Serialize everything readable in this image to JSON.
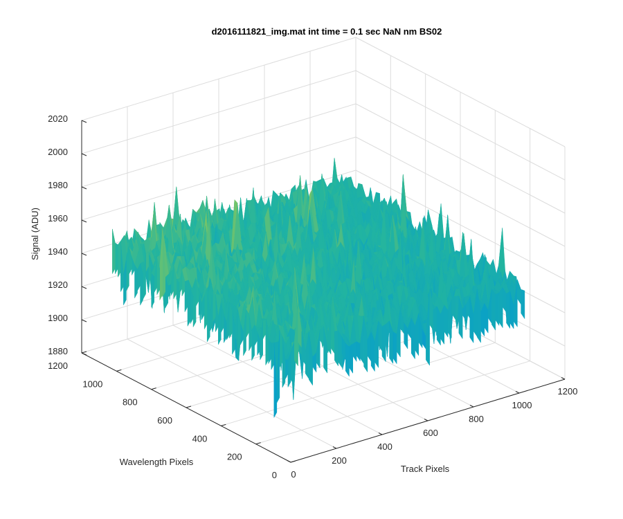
{
  "chart_data": {
    "type": "surface",
    "title": "d2016111821_img.mat int time = 0.1 sec  NaN nm BS02",
    "xlabel": "Track Pixels",
    "ylabel": "Wavelength Pixels",
    "zlabel": "Signal (ADU)",
    "xlim": [
      0,
      1200
    ],
    "ylim": [
      0,
      1200
    ],
    "zlim": [
      1880,
      2020
    ],
    "x_ticks": [
      "0",
      "200",
      "400",
      "600",
      "800",
      "1000",
      "1200"
    ],
    "y_ticks": [
      "0",
      "200",
      "400",
      "600",
      "800",
      "1000",
      "1200"
    ],
    "z_ticks": [
      "1880",
      "1900",
      "1920",
      "1940",
      "1960",
      "1980",
      "2000",
      "2020"
    ],
    "grid": true,
    "colormap": "parula",
    "surface_extent": {
      "x": [
        0,
        1024
      ],
      "y": [
        0,
        1024
      ]
    },
    "signal_range": [
      1895,
      1990
    ],
    "mean_signal_by_track_pixel": [
      {
        "x": 0,
        "z": 1952
      },
      {
        "x": 1024,
        "z": 1945
      }
    ],
    "mean_signal_by_wavelength_pixel": [
      {
        "y": 0,
        "z": 1945
      },
      {
        "y": 1024,
        "z": 1952
      }
    ]
  },
  "colors": {
    "axis": "#262626",
    "grid": "#dcdcdc",
    "colormap_low": "#0072bd",
    "colormap_mid": "#20b2aa",
    "colormap_high": "#e6d84a"
  }
}
